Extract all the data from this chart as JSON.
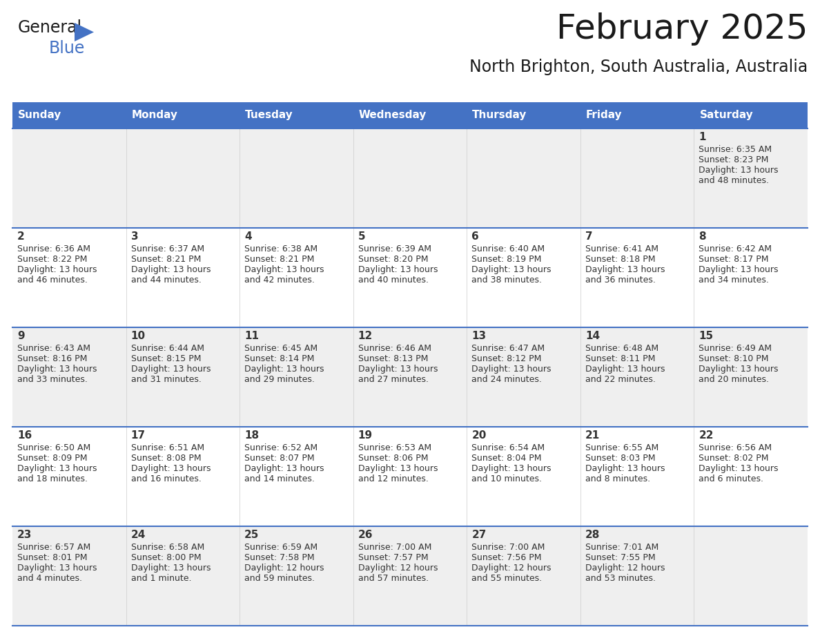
{
  "title": "February 2025",
  "subtitle": "North Brighton, South Australia, Australia",
  "header_color": "#4472C4",
  "header_text_color": "#FFFFFF",
  "cell_bg_odd": "#EFEFEF",
  "cell_bg_even": "#FFFFFF",
  "divider_color": "#4472C4",
  "text_color": "#333333",
  "blue_color": "#2E75B6",
  "days_of_week": [
    "Sunday",
    "Monday",
    "Tuesday",
    "Wednesday",
    "Thursday",
    "Friday",
    "Saturday"
  ],
  "calendar_data": [
    [
      null,
      null,
      null,
      null,
      null,
      null,
      {
        "day": 1,
        "sunrise": "6:35 AM",
        "sunset": "8:23 PM",
        "daylight_line1": "Daylight: 13 hours",
        "daylight_line2": "and 48 minutes."
      }
    ],
    [
      {
        "day": 2,
        "sunrise": "6:36 AM",
        "sunset": "8:22 PM",
        "daylight_line1": "Daylight: 13 hours",
        "daylight_line2": "and 46 minutes."
      },
      {
        "day": 3,
        "sunrise": "6:37 AM",
        "sunset": "8:21 PM",
        "daylight_line1": "Daylight: 13 hours",
        "daylight_line2": "and 44 minutes."
      },
      {
        "day": 4,
        "sunrise": "6:38 AM",
        "sunset": "8:21 PM",
        "daylight_line1": "Daylight: 13 hours",
        "daylight_line2": "and 42 minutes."
      },
      {
        "day": 5,
        "sunrise": "6:39 AM",
        "sunset": "8:20 PM",
        "daylight_line1": "Daylight: 13 hours",
        "daylight_line2": "and 40 minutes."
      },
      {
        "day": 6,
        "sunrise": "6:40 AM",
        "sunset": "8:19 PM",
        "daylight_line1": "Daylight: 13 hours",
        "daylight_line2": "and 38 minutes."
      },
      {
        "day": 7,
        "sunrise": "6:41 AM",
        "sunset": "8:18 PM",
        "daylight_line1": "Daylight: 13 hours",
        "daylight_line2": "and 36 minutes."
      },
      {
        "day": 8,
        "sunrise": "6:42 AM",
        "sunset": "8:17 PM",
        "daylight_line1": "Daylight: 13 hours",
        "daylight_line2": "and 34 minutes."
      }
    ],
    [
      {
        "day": 9,
        "sunrise": "6:43 AM",
        "sunset": "8:16 PM",
        "daylight_line1": "Daylight: 13 hours",
        "daylight_line2": "and 33 minutes."
      },
      {
        "day": 10,
        "sunrise": "6:44 AM",
        "sunset": "8:15 PM",
        "daylight_line1": "Daylight: 13 hours",
        "daylight_line2": "and 31 minutes."
      },
      {
        "day": 11,
        "sunrise": "6:45 AM",
        "sunset": "8:14 PM",
        "daylight_line1": "Daylight: 13 hours",
        "daylight_line2": "and 29 minutes."
      },
      {
        "day": 12,
        "sunrise": "6:46 AM",
        "sunset": "8:13 PM",
        "daylight_line1": "Daylight: 13 hours",
        "daylight_line2": "and 27 minutes."
      },
      {
        "day": 13,
        "sunrise": "6:47 AM",
        "sunset": "8:12 PM",
        "daylight_line1": "Daylight: 13 hours",
        "daylight_line2": "and 24 minutes."
      },
      {
        "day": 14,
        "sunrise": "6:48 AM",
        "sunset": "8:11 PM",
        "daylight_line1": "Daylight: 13 hours",
        "daylight_line2": "and 22 minutes."
      },
      {
        "day": 15,
        "sunrise": "6:49 AM",
        "sunset": "8:10 PM",
        "daylight_line1": "Daylight: 13 hours",
        "daylight_line2": "and 20 minutes."
      }
    ],
    [
      {
        "day": 16,
        "sunrise": "6:50 AM",
        "sunset": "8:09 PM",
        "daylight_line1": "Daylight: 13 hours",
        "daylight_line2": "and 18 minutes."
      },
      {
        "day": 17,
        "sunrise": "6:51 AM",
        "sunset": "8:08 PM",
        "daylight_line1": "Daylight: 13 hours",
        "daylight_line2": "and 16 minutes."
      },
      {
        "day": 18,
        "sunrise": "6:52 AM",
        "sunset": "8:07 PM",
        "daylight_line1": "Daylight: 13 hours",
        "daylight_line2": "and 14 minutes."
      },
      {
        "day": 19,
        "sunrise": "6:53 AM",
        "sunset": "8:06 PM",
        "daylight_line1": "Daylight: 13 hours",
        "daylight_line2": "and 12 minutes."
      },
      {
        "day": 20,
        "sunrise": "6:54 AM",
        "sunset": "8:04 PM",
        "daylight_line1": "Daylight: 13 hours",
        "daylight_line2": "and 10 minutes."
      },
      {
        "day": 21,
        "sunrise": "6:55 AM",
        "sunset": "8:03 PM",
        "daylight_line1": "Daylight: 13 hours",
        "daylight_line2": "and 8 minutes."
      },
      {
        "day": 22,
        "sunrise": "6:56 AM",
        "sunset": "8:02 PM",
        "daylight_line1": "Daylight: 13 hours",
        "daylight_line2": "and 6 minutes."
      }
    ],
    [
      {
        "day": 23,
        "sunrise": "6:57 AM",
        "sunset": "8:01 PM",
        "daylight_line1": "Daylight: 13 hours",
        "daylight_line2": "and 4 minutes."
      },
      {
        "day": 24,
        "sunrise": "6:58 AM",
        "sunset": "8:00 PM",
        "daylight_line1": "Daylight: 13 hours",
        "daylight_line2": "and 1 minute."
      },
      {
        "day": 25,
        "sunrise": "6:59 AM",
        "sunset": "7:58 PM",
        "daylight_line1": "Daylight: 12 hours",
        "daylight_line2": "and 59 minutes."
      },
      {
        "day": 26,
        "sunrise": "7:00 AM",
        "sunset": "7:57 PM",
        "daylight_line1": "Daylight: 12 hours",
        "daylight_line2": "and 57 minutes."
      },
      {
        "day": 27,
        "sunrise": "7:00 AM",
        "sunset": "7:56 PM",
        "daylight_line1": "Daylight: 12 hours",
        "daylight_line2": "and 55 minutes."
      },
      {
        "day": 28,
        "sunrise": "7:01 AM",
        "sunset": "7:55 PM",
        "daylight_line1": "Daylight: 12 hours",
        "daylight_line2": "and 53 minutes."
      },
      null
    ]
  ]
}
